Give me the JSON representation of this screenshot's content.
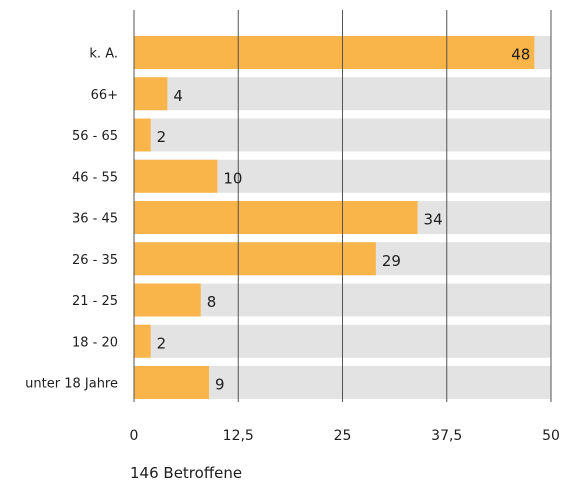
{
  "chart_data": {
    "type": "bar",
    "orientation": "horizontal",
    "categories": [
      "k. A.",
      "66+",
      "56 - 65",
      "46 - 55",
      "36 - 45",
      "26 - 35",
      "21 - 25",
      "18 - 20",
      "unter 18 Jahre"
    ],
    "values": [
      48,
      4,
      2,
      10,
      34,
      29,
      8,
      2,
      9
    ],
    "data_labels": [
      "48",
      "4",
      "2",
      "10",
      "34",
      "29",
      "8",
      "2",
      "9"
    ],
    "xlim": [
      0,
      50
    ],
    "xticks": [
      0,
      12.5,
      25,
      37.5,
      50
    ],
    "xtick_labels": [
      "0",
      "12,5",
      "25",
      "37,5",
      "50"
    ],
    "grid": true,
    "background_track": true,
    "caption": "146 Betroffene"
  },
  "colors": {
    "bar": "#f9b54a",
    "track": "#e3e3e3",
    "grid": "#555555",
    "text": "#1e1e1e"
  }
}
